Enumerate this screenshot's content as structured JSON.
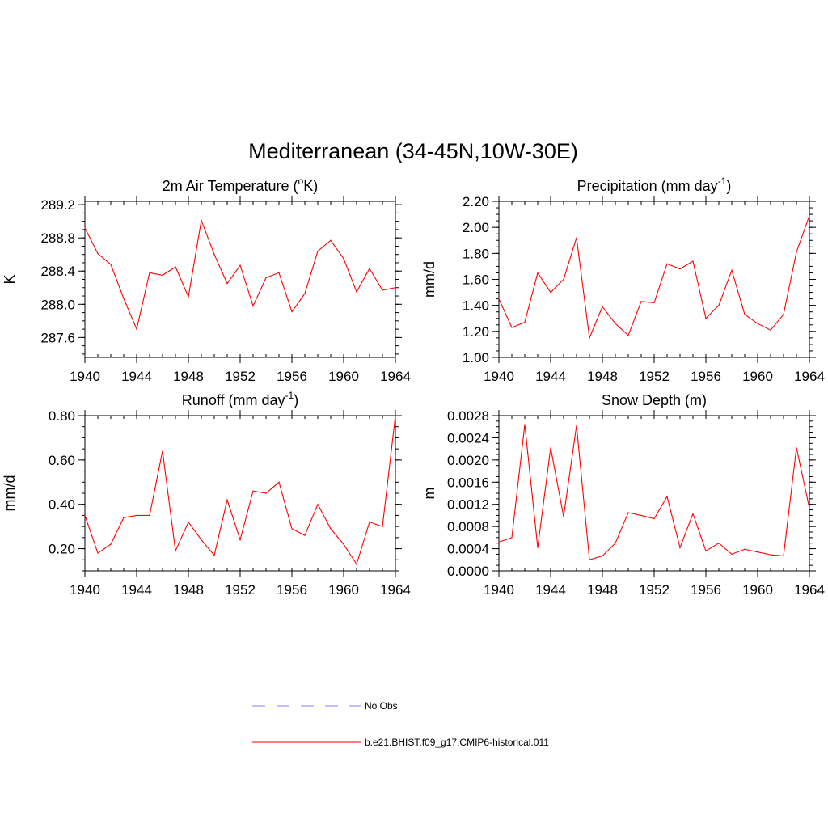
{
  "title": "Mediterranean (34-45N,10W-30E)",
  "legend": [
    {
      "label": "No Obs",
      "color": "#9a9aff",
      "dash": true
    },
    {
      "label": "b.e21.BHIST.f09_g17.CMIP6-historical.011",
      "color": "#ff3030",
      "dash": false
    }
  ],
  "series_color": "#ff0000",
  "chart_data": [
    {
      "type": "line",
      "title_main": "2m Air Temperature (",
      "title_sup": "o",
      "title_after": "K)",
      "ylabel": "K",
      "x": [
        1940,
        1941,
        1942,
        1943,
        1944,
        1945,
        1946,
        1947,
        1948,
        1949,
        1950,
        1951,
        1952,
        1953,
        1954,
        1955,
        1956,
        1957,
        1958,
        1959,
        1960,
        1961,
        1962,
        1963,
        1964
      ],
      "values": [
        288.92,
        288.61,
        288.48,
        288.07,
        287.7,
        288.38,
        288.35,
        288.45,
        288.09,
        289.01,
        288.6,
        288.25,
        288.47,
        287.98,
        288.32,
        288.38,
        287.91,
        288.13,
        288.64,
        288.77,
        288.55,
        288.15,
        288.43,
        288.17,
        288.2
      ],
      "xlim": [
        1940,
        1964
      ],
      "ylim": [
        287.36,
        289.24
      ],
      "xticks": [
        1940,
        1944,
        1948,
        1952,
        1956,
        1960,
        1964
      ],
      "xtick_labels": [
        "1940",
        "1944",
        "1948",
        "1952",
        "1956",
        "1960",
        "1964"
      ],
      "yticks": [
        287.6,
        288.0,
        288.4,
        288.8,
        289.2
      ],
      "ytick_labels": [
        "287.6",
        "288.0",
        "288.4",
        "288.8",
        "289.2"
      ],
      "yminor": 0.1,
      "xminor": 1
    },
    {
      "type": "line",
      "title_main": "Precipitation (mm day",
      "title_sup": "-1",
      "title_after": ")",
      "ylabel": "mm/d",
      "x": [
        1940,
        1941,
        1942,
        1943,
        1944,
        1945,
        1946,
        1947,
        1948,
        1949,
        1950,
        1951,
        1952,
        1953,
        1954,
        1955,
        1956,
        1957,
        1958,
        1959,
        1960,
        1961,
        1962,
        1963,
        1964
      ],
      "values": [
        1.45,
        1.23,
        1.27,
        1.65,
        1.5,
        1.6,
        1.92,
        1.15,
        1.39,
        1.26,
        1.17,
        1.43,
        1.42,
        1.72,
        1.68,
        1.74,
        1.3,
        1.4,
        1.67,
        1.33,
        1.26,
        1.21,
        1.33,
        1.81,
        2.09
      ],
      "xlim": [
        1940,
        1964
      ],
      "ylim": [
        1.0,
        2.2
      ],
      "xticks": [
        1940,
        1944,
        1948,
        1952,
        1956,
        1960,
        1964
      ],
      "xtick_labels": [
        "1940",
        "1944",
        "1948",
        "1952",
        "1956",
        "1960",
        "1964"
      ],
      "yticks": [
        1.0,
        1.2,
        1.4,
        1.6,
        1.8,
        2.0,
        2.2
      ],
      "ytick_labels": [
        "1.00",
        "1.20",
        "1.40",
        "1.60",
        "1.80",
        "2.00",
        "2.20"
      ],
      "yminor": 0.05,
      "xminor": 1
    },
    {
      "type": "line",
      "title_main": "Runoff (mm day",
      "title_sup": "-1",
      "title_after": ")",
      "ylabel": "mm/d",
      "x": [
        1940,
        1941,
        1942,
        1943,
        1944,
        1945,
        1946,
        1947,
        1948,
        1949,
        1950,
        1951,
        1952,
        1953,
        1954,
        1955,
        1956,
        1957,
        1958,
        1959,
        1960,
        1961,
        1962,
        1963,
        1964
      ],
      "values": [
        0.35,
        0.18,
        0.22,
        0.34,
        0.35,
        0.35,
        0.64,
        0.19,
        0.32,
        0.24,
        0.17,
        0.42,
        0.24,
        0.46,
        0.45,
        0.5,
        0.29,
        0.26,
        0.4,
        0.29,
        0.22,
        0.13,
        0.32,
        0.3,
        0.8
      ],
      "xlim": [
        1940,
        1964
      ],
      "ylim": [
        0.1,
        0.8
      ],
      "xticks": [
        1940,
        1944,
        1948,
        1952,
        1956,
        1960,
        1964
      ],
      "xtick_labels": [
        "1940",
        "1944",
        "1948",
        "1952",
        "1956",
        "1960",
        "1964"
      ],
      "yticks": [
        0.2,
        0.4,
        0.6,
        0.8
      ],
      "ytick_labels": [
        "0.20",
        "0.40",
        "0.60",
        "0.80"
      ],
      "yminor": 0.05,
      "xminor": 1
    },
    {
      "type": "line",
      "title_main": "Snow Depth (m)",
      "title_sup": "",
      "title_after": "",
      "ylabel": "m",
      "x": [
        1940,
        1941,
        1942,
        1943,
        1944,
        1945,
        1946,
        1947,
        1948,
        1949,
        1950,
        1951,
        1952,
        1953,
        1954,
        1955,
        1956,
        1957,
        1958,
        1959,
        1960,
        1961,
        1962,
        1963,
        1964
      ],
      "values": [
        0.00052,
        0.0006,
        0.00264,
        0.00042,
        0.00222,
        0.00098,
        0.00262,
        0.0002,
        0.00027,
        0.0005,
        0.00105,
        0.001,
        0.00094,
        0.00134,
        0.00042,
        0.00103,
        0.00036,
        0.0005,
        0.0003,
        0.00039,
        0.00034,
        0.00029,
        0.00027,
        0.00222,
        0.00113
      ],
      "xlim": [
        1940,
        1964
      ],
      "ylim": [
        0.0,
        0.0028
      ],
      "xticks": [
        1940,
        1944,
        1948,
        1952,
        1956,
        1960,
        1964
      ],
      "xtick_labels": [
        "1940",
        "1944",
        "1948",
        "1952",
        "1956",
        "1960",
        "1964"
      ],
      "yticks": [
        0.0,
        0.0004,
        0.0008,
        0.0012,
        0.0016,
        0.002,
        0.0024,
        0.0028
      ],
      "ytick_labels": [
        "0.0000",
        "0.0004",
        "0.0008",
        "0.0012",
        "0.0016",
        "0.0020",
        "0.0024",
        "0.0028"
      ],
      "yminor": 0.0001,
      "xminor": 1
    }
  ]
}
